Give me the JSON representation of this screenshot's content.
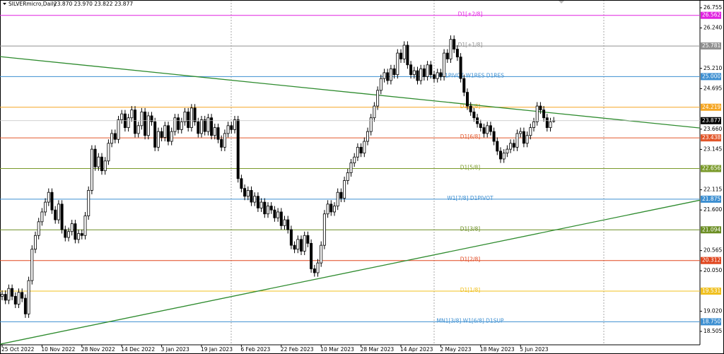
{
  "chart_data": {
    "type": "candlestick",
    "title": "SILVERmicro,Daily",
    "quote": "23.870 23.970 23.822 23.877",
    "ylim": [
      18.163,
      26.953
    ],
    "yticks": [
      26.755,
      {
        "value": 26.24,
        "label": "26.240"
      },
      {
        "value": 25.21,
        "label": "25.210"
      },
      24.695,
      {
        "value": 23.66,
        "label": "23.660"
      },
      23.145,
      22.115,
      {
        "value": 21.6,
        "label": "21.600"
      },
      20.565,
      {
        "value": 20.05,
        "label": "20.050"
      },
      {
        "value": 19.02,
        "label": "19.020"
      },
      18.505
    ],
    "categories": [
      "25 Oct 2022",
      null,
      null,
      null,
      null,
      null,
      null,
      null,
      null,
      null,
      null,
      null,
      "10 Nov 2022",
      null,
      null,
      null,
      null,
      null,
      null,
      null,
      null,
      null,
      null,
      null,
      "28 Nov 2022",
      null,
      null,
      null,
      null,
      null,
      null,
      null,
      null,
      null,
      null,
      null,
      "14 Dec 2022",
      null,
      null,
      null,
      null,
      null,
      null,
      null,
      null,
      null,
      null,
      null,
      "3 Jan 2023",
      null,
      null,
      null,
      null,
      null,
      null,
      null,
      null,
      null,
      null,
      null,
      "19 Jan 2023",
      null,
      null,
      null,
      null,
      null,
      null,
      null,
      null,
      null,
      null,
      null,
      "6 Feb 2023",
      null,
      null,
      null,
      null,
      null,
      null,
      null,
      null,
      null,
      null,
      null,
      "22 Feb 2023",
      null,
      null,
      null,
      null,
      null,
      null,
      null,
      null,
      null,
      null,
      null,
      "10 Mar 2023",
      null,
      null,
      null,
      null,
      null,
      null,
      null,
      null,
      null,
      null,
      null,
      "28 Mar 2023",
      null,
      null,
      null,
      null,
      null,
      null,
      null,
      null,
      null,
      null,
      null,
      "14 Apr 2023",
      null,
      null,
      null,
      null,
      null,
      null,
      null,
      null,
      null,
      null,
      null,
      "2 May 2023",
      null,
      null,
      null,
      null,
      null,
      null,
      null,
      null,
      null,
      null,
      null,
      "18 May 2023",
      null,
      null,
      null,
      null,
      null,
      null,
      null,
      null,
      null,
      null,
      null,
      "5 Jun 2023",
      null,
      null,
      null,
      null,
      null,
      null,
      null,
      null,
      null,
      null
    ],
    "open": [
      19.4,
      19.45,
      19.3,
      19.6,
      19.4,
      19.2,
      19.5,
      19.35,
      18.95,
      19.8,
      20.6,
      20.95,
      21.3,
      21.55,
      21.8,
      22.05,
      21.6,
      21.35,
      21.75,
      21.1,
      20.9,
      21.05,
      21.25,
      20.85,
      21.0,
      20.95,
      21.45,
      22.1,
      23.15,
      22.7,
      22.95,
      22.6,
      22.85,
      23.3,
      23.55,
      23.4,
      23.9,
      24.05,
      23.7,
      23.95,
      24.15,
      23.55,
      23.75,
      24.1,
      23.5,
      24.0,
      23.85,
      23.2,
      23.6,
      23.45,
      23.75,
      23.35,
      23.6,
      23.95,
      23.65,
      23.85,
      24.1,
      23.7,
      24.2,
      23.85,
      23.55,
      23.9,
      23.6,
      23.95,
      23.5,
      23.7,
      23.4,
      23.2,
      23.55,
      23.75,
      23.65,
      23.9,
      22.4,
      22.15,
      21.95,
      22.1,
      21.8,
      21.95,
      21.65,
      21.8,
      21.5,
      21.7,
      21.6,
      21.4,
      21.55,
      21.2,
      21.35,
      21.1,
      20.7,
      20.6,
      20.85,
      20.55,
      20.95,
      20.75,
      20.1,
      20.0,
      20.25,
      20.7,
      21.5,
      21.75,
      21.55,
      21.7,
      22.05,
      21.9,
      22.35,
      22.55,
      22.8,
      22.95,
      23.2,
      23.05,
      23.35,
      23.6,
      23.95,
      24.25,
      24.65,
      24.95,
      25.1,
      24.9,
      25.2,
      25.05,
      25.6,
      25.45,
      25.8,
      25.3,
      25.05,
      25.15,
      24.9,
      25.2,
      25.0,
      25.3,
      25.05,
      24.95,
      25.1,
      25.0,
      25.6,
      25.45,
      25.95,
      25.7,
      25.5,
      24.95,
      24.6,
      24.25,
      24.1,
      23.95,
      23.8,
      23.7,
      23.55,
      23.75,
      23.6,
      23.35,
      23.1,
      22.9,
      23.05,
      23.15,
      23.3,
      23.2,
      23.55,
      23.6,
      23.3,
      23.5,
      23.7,
      23.85,
      24.25,
      24.15,
      23.95,
      23.7,
      23.87
    ],
    "high": [
      19.55,
      19.55,
      19.7,
      19.7,
      19.5,
      19.6,
      19.6,
      19.45,
      19.9,
      20.7,
      21.05,
      21.4,
      21.65,
      21.9,
      22.15,
      22.15,
      21.7,
      21.85,
      21.85,
      21.2,
      21.15,
      21.35,
      21.35,
      21.1,
      21.1,
      21.55,
      22.2,
      23.25,
      23.25,
      23.05,
      23.05,
      22.95,
      23.4,
      23.65,
      23.65,
      24.0,
      24.15,
      24.15,
      24.05,
      24.25,
      24.25,
      23.85,
      24.2,
      24.2,
      24.1,
      24.1,
      23.95,
      23.7,
      23.7,
      23.85,
      23.85,
      23.7,
      24.05,
      24.05,
      23.95,
      24.2,
      24.2,
      24.3,
      24.3,
      23.95,
      24.0,
      24.0,
      24.05,
      24.05,
      23.8,
      23.8,
      23.5,
      23.65,
      23.85,
      23.85,
      24.0,
      24.0,
      22.5,
      22.25,
      22.2,
      22.2,
      22.05,
      22.05,
      21.9,
      21.9,
      21.8,
      21.8,
      21.7,
      21.65,
      21.65,
      21.45,
      21.45,
      21.2,
      20.8,
      20.95,
      20.95,
      21.05,
      21.05,
      20.85,
      20.2,
      20.35,
      20.8,
      21.6,
      21.85,
      21.85,
      21.8,
      22.15,
      22.15,
      22.45,
      22.65,
      22.9,
      23.05,
      23.3,
      23.3,
      23.45,
      23.7,
      24.05,
      24.35,
      24.75,
      25.05,
      25.2,
      25.2,
      25.3,
      25.3,
      25.7,
      25.7,
      25.9,
      25.9,
      25.4,
      25.25,
      25.25,
      25.3,
      25.3,
      25.4,
      25.4,
      25.15,
      25.2,
      25.2,
      25.7,
      25.7,
      26.05,
      26.05,
      25.8,
      25.6,
      25.05,
      24.7,
      24.35,
      24.2,
      24.05,
      23.9,
      23.8,
      23.85,
      23.85,
      23.7,
      23.45,
      23.2,
      23.15,
      23.25,
      23.4,
      23.4,
      23.65,
      23.7,
      23.7,
      23.6,
      23.8,
      23.95,
      24.35,
      24.35,
      24.25,
      24.05,
      23.95,
      23.97
    ],
    "low": [
      19.3,
      19.2,
      19.2,
      19.3,
      19.1,
      19.1,
      19.25,
      18.85,
      18.85,
      19.7,
      20.5,
      20.85,
      21.2,
      21.45,
      21.7,
      21.5,
      21.25,
      21.25,
      21.0,
      20.8,
      20.8,
      20.95,
      20.75,
      20.75,
      20.85,
      20.85,
      21.35,
      22.0,
      22.6,
      22.6,
      22.5,
      22.5,
      22.75,
      23.2,
      23.3,
      23.3,
      23.8,
      23.6,
      23.6,
      23.85,
      23.45,
      23.45,
      23.65,
      23.4,
      23.4,
      23.75,
      23.1,
      23.1,
      23.35,
      23.35,
      23.25,
      23.25,
      23.5,
      23.55,
      23.55,
      23.75,
      23.6,
      23.6,
      23.75,
      23.45,
      23.45,
      23.5,
      23.5,
      23.4,
      23.4,
      23.3,
      23.1,
      23.1,
      23.45,
      23.55,
      23.55,
      22.3,
      22.05,
      21.85,
      21.85,
      21.7,
      21.7,
      21.55,
      21.55,
      21.4,
      21.4,
      21.5,
      21.3,
      21.3,
      21.1,
      21.1,
      21.0,
      20.6,
      20.5,
      20.5,
      20.45,
      20.45,
      20.65,
      20.0,
      19.9,
      19.9,
      20.15,
      20.6,
      21.4,
      21.45,
      21.45,
      21.6,
      21.8,
      21.8,
      22.25,
      22.45,
      22.7,
      22.85,
      22.95,
      22.95,
      23.25,
      23.5,
      23.85,
      24.15,
      24.55,
      24.85,
      24.8,
      24.8,
      24.95,
      24.95,
      25.35,
      25.35,
      25.2,
      24.95,
      24.95,
      24.8,
      24.8,
      24.9,
      24.9,
      24.95,
      24.85,
      24.85,
      24.9,
      24.9,
      25.35,
      25.35,
      25.6,
      25.4,
      24.85,
      24.5,
      24.15,
      24.0,
      23.85,
      23.7,
      23.6,
      23.45,
      23.45,
      23.5,
      23.25,
      23.0,
      22.8,
      22.8,
      22.95,
      23.05,
      23.1,
      23.1,
      23.45,
      23.2,
      23.2,
      23.4,
      23.6,
      23.75,
      24.05,
      23.85,
      23.6,
      23.6,
      23.822
    ],
    "close": [
      19.45,
      19.3,
      19.6,
      19.4,
      19.2,
      19.5,
      19.35,
      18.95,
      19.8,
      20.6,
      20.95,
      21.3,
      21.55,
      21.8,
      22.05,
      21.6,
      21.35,
      21.75,
      21.1,
      20.9,
      21.05,
      21.25,
      20.85,
      21.0,
      20.95,
      21.45,
      22.1,
      23.15,
      22.7,
      22.95,
      22.6,
      22.85,
      23.3,
      23.55,
      23.4,
      23.9,
      24.05,
      23.7,
      23.95,
      24.15,
      23.55,
      23.75,
      24.1,
      23.5,
      24.0,
      23.85,
      23.2,
      23.6,
      23.45,
      23.75,
      23.35,
      23.6,
      23.95,
      23.65,
      23.85,
      24.1,
      23.7,
      24.2,
      23.85,
      23.55,
      23.9,
      23.6,
      23.95,
      23.5,
      23.7,
      23.4,
      23.2,
      23.55,
      23.75,
      23.65,
      23.9,
      22.4,
      22.15,
      21.95,
      22.1,
      21.8,
      21.95,
      21.65,
      21.8,
      21.5,
      21.7,
      21.6,
      21.4,
      21.55,
      21.2,
      21.35,
      21.1,
      20.7,
      20.6,
      20.85,
      20.55,
      20.95,
      20.75,
      20.1,
      20.0,
      20.25,
      20.7,
      21.5,
      21.75,
      21.55,
      21.7,
      22.05,
      21.9,
      22.35,
      22.55,
      22.8,
      22.95,
      23.2,
      23.05,
      23.35,
      23.6,
      23.95,
      24.25,
      24.65,
      24.95,
      25.1,
      24.9,
      25.2,
      25.05,
      25.6,
      25.45,
      25.8,
      25.3,
      25.05,
      25.15,
      24.9,
      25.2,
      25.0,
      25.3,
      25.05,
      24.95,
      25.1,
      25.0,
      25.6,
      25.45,
      25.95,
      25.7,
      25.5,
      24.95,
      24.6,
      24.25,
      24.1,
      23.95,
      23.8,
      23.7,
      23.55,
      23.75,
      23.6,
      23.35,
      23.1,
      22.9,
      23.05,
      23.15,
      23.3,
      23.2,
      23.55,
      23.6,
      23.3,
      23.5,
      23.7,
      23.85,
      24.25,
      24.15,
      23.95,
      23.7,
      23.85,
      23.877
    ],
    "levels": [
      {
        "value": 26.562,
        "name": "D1[+2/8]",
        "color": "#e020e0"
      },
      {
        "value": 25.781,
        "name": "D1[+1/8]",
        "color": "#909090"
      },
      {
        "value": 25,
        "price_label": "25.000",
        "name": "MN1PIVOT W1RES D1RES",
        "color": "#3d8fd1"
      },
      {
        "value": 24.219,
        "name": "D1[8/8]",
        "color": "#f5a623"
      },
      {
        "value": 23.438,
        "name": "D1[6/8]",
        "color": "#e2572b"
      },
      {
        "value": 22.656,
        "name": "D1[5/8]",
        "color": "#7a9a2a"
      },
      {
        "value": 21.875,
        "name": "W1[7/8] D1PIVOT",
        "color": "#3d8fd1"
      },
      {
        "value": 21.094,
        "name": "D1[3/8]",
        "color": "#6b8e23"
      },
      {
        "value": 20.312,
        "name": "D1[2/8]",
        "color": "#e0461e"
      },
      {
        "value": 19.531,
        "name": "D1[1/8]",
        "color": "#f0c020"
      },
      {
        "value": 18.75,
        "price_label": "18.750",
        "name": "MN1[3/8] W1[6/8] D1SUP",
        "color": "#3d8fd1"
      }
    ],
    "trendlines": [
      {
        "values": [
          25.51,
          23.69
        ],
        "color": "#2e8b2e"
      },
      {
        "values": [
          18.18,
          21.85
        ],
        "color": "#2e8b2e"
      }
    ]
  }
}
